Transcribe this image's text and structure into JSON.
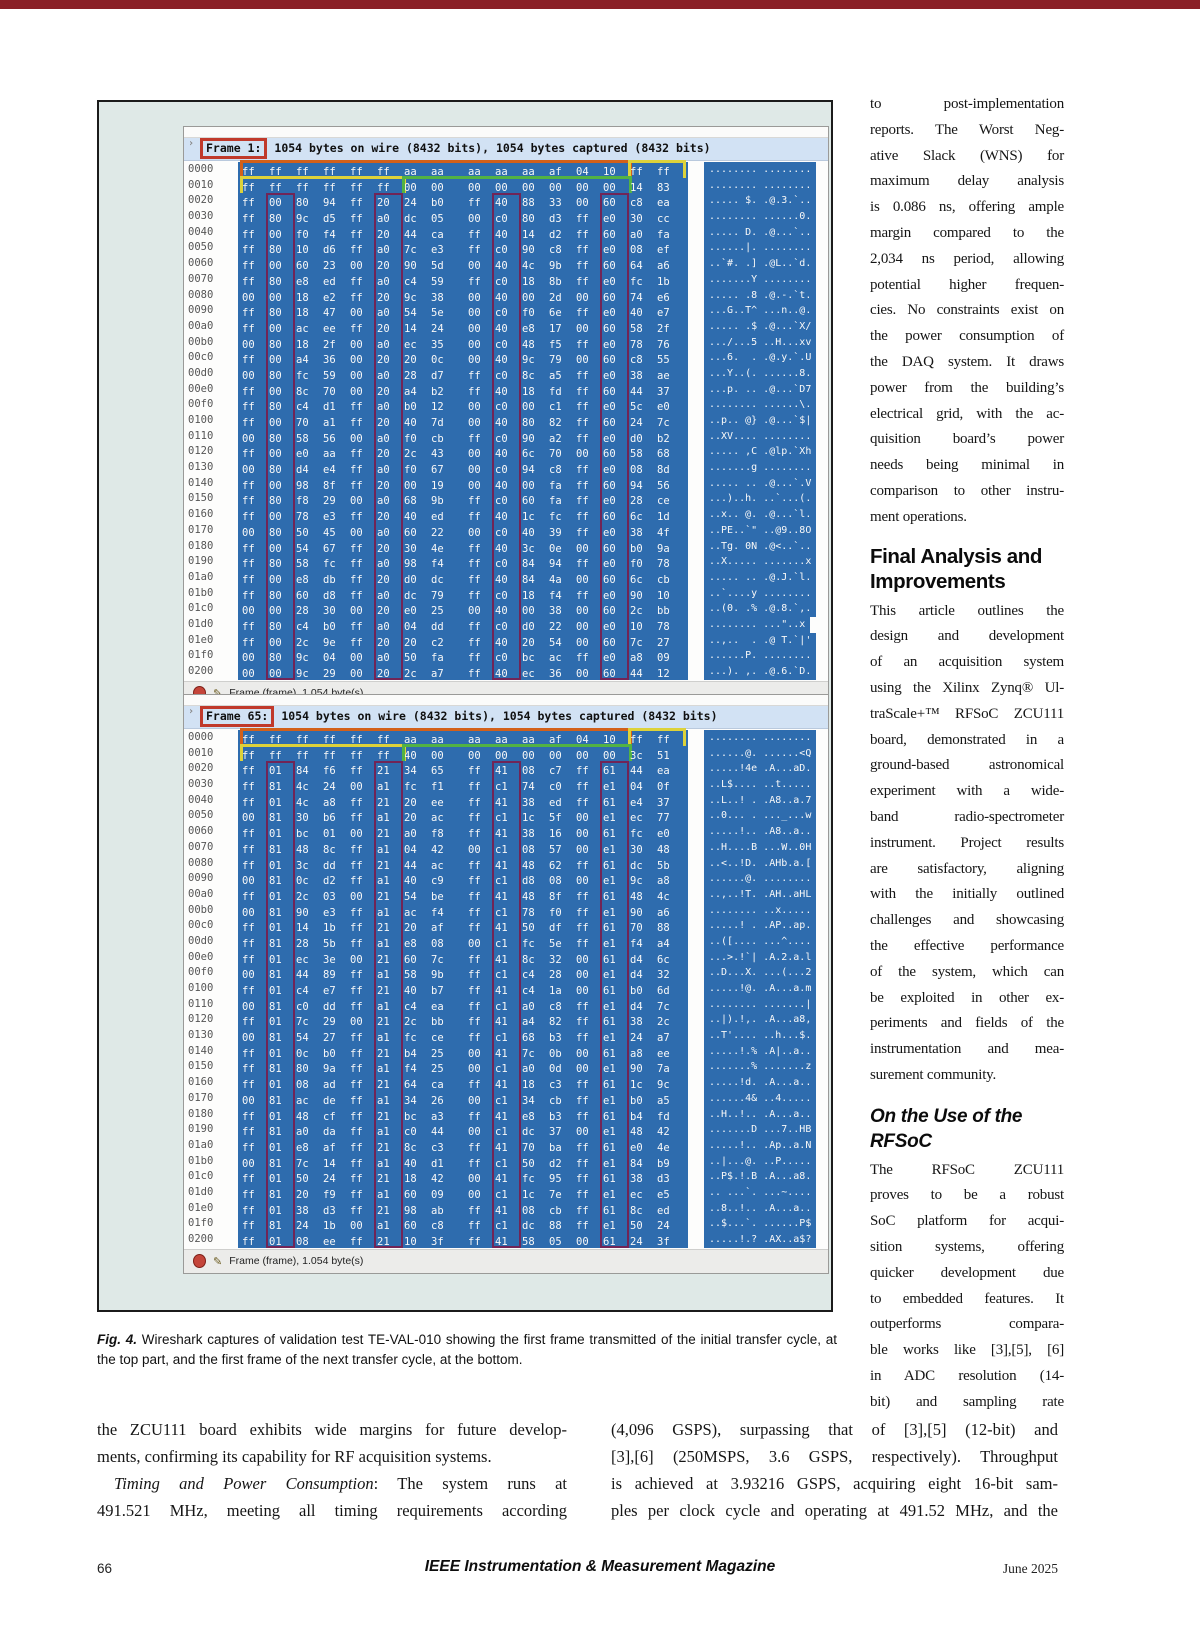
{
  "page": {
    "accent_color": "#8a2027",
    "footer": {
      "page_number": "66",
      "journal": "IEEE Instrumentation & Measurement Magazine",
      "date": "June 2025"
    }
  },
  "figure": {
    "caption": {
      "label": "Fig. 4.",
      "text": " Wireshark captures of validation test TE-VAL-010 showing the first frame transmitted of the initial transfer cycle, at the top part, and the first frame of the next transfer cycle, at the bottom."
    },
    "colors": {
      "hex_selection_blue": "#2e6cae",
      "annotation_red": "#c0392b",
      "annotation_orange": "#d2601a",
      "annotation_yellow": "#ddd23a",
      "annotation_green": "#52b244",
      "annotation_stripe": "#7d1948"
    },
    "panels": [
      {
        "frame_label": "Frame 1:",
        "frame_summary": "1054 bytes on wire (8432 bits), 1054 bytes captured (8432 bits)",
        "status_text": "Frame (frame), 1.054 byte(s)",
        "stripe_cols": [
          1,
          5,
          9,
          13
        ],
        "row0_groups": [
          {
            "s": 0,
            "e": 13,
            "c": "ogr"
          },
          {
            "s": 14,
            "e": 15,
            "c": "ygr"
          }
        ],
        "row1_groups": [
          {
            "s": 0,
            "e": 5,
            "c": "ygr"
          },
          {
            "s": 6,
            "e": 13,
            "c": "ggr"
          }
        ],
        "rows": [
          [
            "0000",
            "ff ff ff ff ff ff aa aa aa aa aa af 04 10 ff ff",
            "........ ........"
          ],
          [
            "0010",
            "ff ff ff ff ff ff 00 00 00 00 00 00 00 00 14 83",
            "........ ........"
          ],
          [
            "0020",
            "ff 00 80 94 ff 20 24 b0 ff 40 88 33 00 60 c8 ea",
            "..... $. .@.3.`.."
          ],
          [
            "0030",
            "ff 80 9c d5 ff a0 dc 05 00 c0 80 d3 ff e0 30 cc",
            "........ ......0."
          ],
          [
            "0040",
            "ff 00 f0 f4 ff 20 44 ca ff 40 14 d2 ff 60 a0 fa",
            "..... D. .@...`.."
          ],
          [
            "0050",
            "ff 80 10 d6 ff a0 7c e3 ff c0 90 c8 ff e0 08 ef",
            "......|. ........"
          ],
          [
            "0060",
            "ff 00 60 23 00 20 90 5d 00 40 4c 9b ff 60 64 a6",
            "..`#. .] .@L..`d."
          ],
          [
            "0070",
            "ff 80 e8 ed ff a0 c4 59 ff c0 18 8b ff e0 fc 1b",
            ".......Y ........"
          ],
          [
            "0080",
            "00 00 18 e2 ff 20 9c 38 00 40 00 2d 00 60 74 e6",
            "..... .8 .@.-.`t."
          ],
          [
            "0090",
            "ff 80 18 47 00 a0 54 5e 00 c0 f0 6e ff e0 40 e7",
            "...G..T^ ...n..@."
          ],
          [
            "00a0",
            "ff 00 ac ee ff 20 14 24 00 40 e8 17 00 60 58 2f",
            "..... .$ .@...`X/"
          ],
          [
            "00b0",
            "00 80 18 2f 00 a0 ec 35 00 c0 48 f5 ff e0 78 76",
            ".../...5 ..H...xv"
          ],
          [
            "00c0",
            "ff 00 a4 36 00 20 20 0c 00 40 9c 79 00 60 c8 55",
            "...6.  . .@.y.`.U"
          ],
          [
            "00d0",
            "00 80 fc 59 00 a0 28 d7 ff c0 8c a5 ff e0 38 ae",
            "...Y..(. ......8."
          ],
          [
            "00e0",
            "ff 00 8c 70 00 20 a4 b2 ff 40 18 fd ff 60 44 37",
            "...p. .. .@...`D7"
          ],
          [
            "00f0",
            "ff 80 c4 d1 ff a0 b0 12 00 c0 00 c1 ff e0 5c e0",
            "........ ......\\."
          ],
          [
            "0100",
            "ff 00 70 a1 ff 20 40 7d 00 40 80 82 ff 60 24 7c",
            "..p.. @} .@...`$|"
          ],
          [
            "0110",
            "00 80 58 56 00 a0 f0 cb ff c0 90 a2 ff e0 d0 b2",
            "..XV.... ........"
          ],
          [
            "0120",
            "ff 00 e0 aa ff 20 2c 43 00 40 6c 70 00 60 58 68",
            "..... ,C .@lp.`Xh"
          ],
          [
            "0130",
            "00 80 d4 e4 ff a0 f0 67 00 c0 94 c8 ff e0 08 8d",
            ".......g ........"
          ],
          [
            "0140",
            "ff 00 98 8f ff 20 00 19 00 40 00 fa ff 60 94 56",
            "..... .. .@...`.V"
          ],
          [
            "0150",
            "ff 80 f8 29 00 a0 68 9b ff c0 60 fa ff e0 28 ce",
            "...)..h. ..`...(."
          ],
          [
            "0160",
            "ff 00 78 e3 ff 20 40 ed ff 40 1c fc ff 60 6c 1d",
            "..x.. @. .@...`l."
          ],
          [
            "0170",
            "00 80 50 45 00 a0 60 22 00 c0 40 39 ff e0 38 4f",
            "..PE..`\" ..@9..8O"
          ],
          [
            "0180",
            "ff 00 54 67 ff 20 30 4e ff 40 3c 0e 00 60 b0 9a",
            "..Tg. 0N .@<..`.."
          ],
          [
            "0190",
            "ff 80 58 fc ff a0 98 f4 ff c0 84 94 ff e0 f0 78",
            "..X..... .......x"
          ],
          [
            "01a0",
            "ff 00 e8 db ff 20 d0 dc ff 40 84 4a 00 60 6c cb",
            "..... .. .@.J.`l."
          ],
          [
            "01b0",
            "ff 80 60 d8 ff a0 dc 79 ff c0 18 f4 ff e0 90 10",
            "..`....y ........"
          ],
          [
            "01c0",
            "00 00 28 30 00 20 e0 25 00 40 00 38 00 60 2c bb",
            "..(0. .% .@.8.`,."
          ],
          [
            "01d0",
            "ff 80 c4 b0 ff a0 04 dd ff c0 d0 22 00 e0 10 78",
            "........ ...\"..x"
          ],
          [
            "01e0",
            "ff 00 2c 9e ff 20 20 c2 ff 40 20 54 00 60 7c 27",
            "..,..  . .@ T.`|'"
          ],
          [
            "01f0",
            "00 80 9c 04 00 a0 50 fa ff c0 bc ac ff e0 a8 09",
            "......P. ........"
          ],
          [
            "0200",
            "00 00 9c 29 00 20 2c a7 ff 40 ec 36 00 60 44 12",
            "...). ,. .@.6.`D."
          ]
        ]
      },
      {
        "frame_label": "Frame 65:",
        "frame_summary": "1054 bytes on wire (8432 bits), 1054 bytes captured (8432 bits)",
        "status_text": "Frame (frame), 1.054 byte(s)",
        "stripe_cols": [
          1,
          5,
          9,
          13
        ],
        "row0_groups": [
          {
            "s": 0,
            "e": 13,
            "c": "ogr"
          },
          {
            "s": 14,
            "e": 15,
            "c": "ygr"
          }
        ],
        "row1_groups": [
          {
            "s": 0,
            "e": 5,
            "c": "ygr"
          },
          {
            "s": 6,
            "e": 13,
            "c": "ggr"
          }
        ],
        "rows": [
          [
            "0000",
            "ff ff ff ff ff ff aa aa aa aa aa af 04 10 ff ff",
            "........ ........"
          ],
          [
            "0010",
            "ff ff ff ff ff ff 40 00 00 00 00 00 00 00 3c 51",
            "......@. ......<Q"
          ],
          [
            "0020",
            "ff 01 84 f6 ff 21 34 65 ff 41 08 c7 ff 61 44 ea",
            ".....!4e .A...aD."
          ],
          [
            "0030",
            "ff 81 4c 24 00 a1 fc f1 ff c1 74 c0 ff e1 04 0f",
            "..L$.... ..t....."
          ],
          [
            "0040",
            "ff 01 4c a8 ff 21 20 ee ff 41 38 ed ff 61 e4 37",
            "..L..! . .A8..a.7"
          ],
          [
            "0050",
            "00 81 30 b6 ff a1 20 ac ff c1 1c 5f 00 e1 ec 77",
            "..0... . ..._...w"
          ],
          [
            "0060",
            "ff 01 bc 01 00 21 a0 f8 ff 41 38 16 00 61 fc e0",
            ".....!.. .A8..a.."
          ],
          [
            "0070",
            "ff 81 48 8c ff a1 04 42 00 c1 08 57 00 e1 30 48",
            "..H....B ...W..0H"
          ],
          [
            "0080",
            "ff 01 3c dd ff 21 44 ac ff 41 48 62 ff 61 dc 5b",
            "..<..!D. .AHb.a.["
          ],
          [
            "0090",
            "00 81 0c d2 ff a1 40 c9 ff c1 d8 08 00 e1 9c a8",
            "......@. ........"
          ],
          [
            "00a0",
            "ff 01 2c 03 00 21 54 be ff 41 48 8f ff 61 48 4c",
            "..,..!T. .AH..aHL"
          ],
          [
            "00b0",
            "00 81 90 e3 ff a1 ac f4 ff c1 78 f0 ff e1 90 a6",
            "........ ..x....."
          ],
          [
            "00c0",
            "ff 01 14 1b ff 21 20 af ff 41 50 df ff 61 70 88",
            ".....! . .AP..ap."
          ],
          [
            "00d0",
            "ff 81 28 5b ff a1 e8 08 00 c1 fc 5e ff e1 f4 a4",
            "..([.... ...^...."
          ],
          [
            "00e0",
            "ff 01 ec 3e 00 21 60 7c ff 41 8c 32 00 61 d4 6c",
            "...>.!`| .A.2.a.l"
          ],
          [
            "00f0",
            "00 81 44 89 ff a1 58 9b ff c1 c4 28 00 e1 d4 32",
            "..D...X. ...(...2"
          ],
          [
            "0100",
            "ff 01 c4 e7 ff 21 40 b7 ff 41 c4 1a 00 61 b0 6d",
            ".....!@. .A...a.m"
          ],
          [
            "0110",
            "00 81 c0 dd ff a1 c4 ea ff c1 a0 c8 ff e1 d4 7c",
            "........ .......|"
          ],
          [
            "0120",
            "ff 01 7c 29 00 21 2c bb ff 41 a4 82 ff 61 38 2c",
            "..|).!,. .A...a8,"
          ],
          [
            "0130",
            "00 81 54 27 ff a1 fc ce ff c1 68 b3 ff e1 24 a7",
            "..T'.... ..h...$."
          ],
          [
            "0140",
            "ff 01 0c b0 ff 21 b4 25 00 41 7c 0b 00 61 a8 ee",
            ".....!.% .A|..a.."
          ],
          [
            "0150",
            "ff 81 80 9a ff a1 f4 25 00 c1 a0 0d 00 e1 90 7a",
            ".......% .......z"
          ],
          [
            "0160",
            "ff 01 08 ad ff 21 64 ca ff 41 18 c3 ff 61 1c 9c",
            ".....!d. .A...a.."
          ],
          [
            "0170",
            "00 81 ac de ff a1 34 26 00 c1 34 cb ff e1 b0 a5",
            "......4& ..4....."
          ],
          [
            "0180",
            "ff 01 48 cf ff 21 bc a3 ff 41 e8 b3 ff 61 b4 fd",
            "..H..!.. .A...a.."
          ],
          [
            "0190",
            "ff 81 a0 da ff a1 c0 44 00 c1 dc 37 00 e1 48 42",
            ".......D ...7..HB"
          ],
          [
            "01a0",
            "ff 01 e8 af ff 21 8c c3 ff 41 70 ba ff 61 e0 4e",
            ".....!.. .Ap..a.N"
          ],
          [
            "01b0",
            "00 81 7c 14 ff a1 40 d1 ff c1 50 d2 ff e1 84 b9",
            "..|...@. ..P....."
          ],
          [
            "01c0",
            "ff 01 50 24 ff 21 18 42 00 41 fc 95 ff 61 38 d3",
            "..P$.!.B .A...a8."
          ],
          [
            "01d0",
            "ff 81 20 f9 ff a1 60 09 00 c1 1c 7e ff e1 ec e5",
            ".. ...`. ...~...."
          ],
          [
            "01e0",
            "ff 01 38 d3 ff 21 98 ab ff 41 08 cb ff 61 8c ed",
            "..8..!.. .A...a.."
          ],
          [
            "01f0",
            "ff 81 24 1b 00 a1 60 c8 ff c1 dc 88 ff e1 50 24",
            "..$...`. ......P$"
          ],
          [
            "0200",
            "ff 01 08 ee ff 21 10 3f ff 41 58 05 00 61 24 3f",
            ".....!.? .AX..a$?"
          ]
        ]
      }
    ]
  },
  "right_column": {
    "para_a": {
      "lines": [
        "to post-implementation",
        "reports. The Worst Neg-",
        "ative Slack (WNS) for",
        "maximum delay analysis",
        "is 0.086 ns, offering ample",
        "margin compared to the",
        "2,034 ns period, allowing",
        "potential higher frequen-",
        "cies. No constraints exist on",
        "the power consumption of",
        "the DAQ system. It draws",
        "power from the building’s",
        "electrical grid, with the ac-",
        "quisition board’s power",
        "needs being minimal in",
        "comparison to other instru-",
        {
          "t": "ment operations.",
          "last": true
        }
      ]
    },
    "h1": [
      "Final Analysis and",
      "Improvements"
    ],
    "para_b": {
      "lines": [
        "This article outlines the",
        "design and development",
        "of an acquisition system",
        "using the Xilinx Zynq® Ul-",
        "traScale+™ RFSoC ZCU111",
        "board, demonstrated in a",
        "ground-based astronomical",
        "experiment with a wide-",
        "band radio-spectrometer",
        "instrument. Project results",
        "are satisfactory, aligning",
        "with the initially outlined",
        "challenges and showcasing",
        "the effective performance",
        "of the system, which can",
        "be exploited in other ex-",
        "periments and fields of the",
        "instrumentation and mea-",
        {
          "t": "surement community.",
          "last": true
        }
      ]
    },
    "h2": [
      "On the Use of the",
      "RFSoC"
    ],
    "para_c": {
      "lines": [
        "The RFSoC ZCU111",
        "proves to be a robust",
        "SoC platform for acqui-",
        "sition systems, offering",
        "quicker development due",
        "to embedded features. It",
        "outperforms compara-",
        "ble works like [3],[5], [6]",
        "in ADC resolution (14-",
        "bit) and sampling rate"
      ]
    }
  },
  "bottom": {
    "left": {
      "lines": [
        "the ZCU111 board exhibits wide margins for future develop-",
        {
          "t": "ments, confirming its capability for RF acquisition systems.",
          "last": true
        },
        {
          "indent": true,
          "segs": [
            {
              "t": "Timing and Power Consumption",
              "i": true
            },
            {
              "t": ": The system runs at"
            }
          ]
        },
        "491.521 MHz, meeting all timing requirements according"
      ]
    },
    "right": {
      "lines": [
        "(4,096 GSPS), surpassing that of [3],[5] (12-bit) and",
        "[3],[6] (250MSPS, 3.6 GSPS, respectively). Throughput",
        "is achieved at 3.93216 GSPS, acquiring eight 16-bit sam-",
        "ples per clock cycle and operating at 491.52 MHz, and the"
      ]
    }
  }
}
